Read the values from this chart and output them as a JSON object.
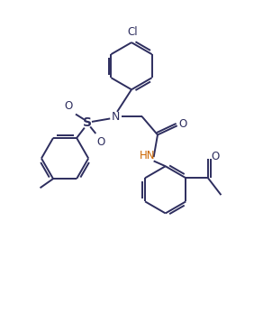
{
  "background": "#ffffff",
  "line_color": "#2d2d5e",
  "line_width": 1.4,
  "figsize": [
    2.92,
    3.58
  ],
  "dpi": 100,
  "xlim": [
    0,
    10
  ],
  "ylim": [
    0,
    12.3
  ]
}
